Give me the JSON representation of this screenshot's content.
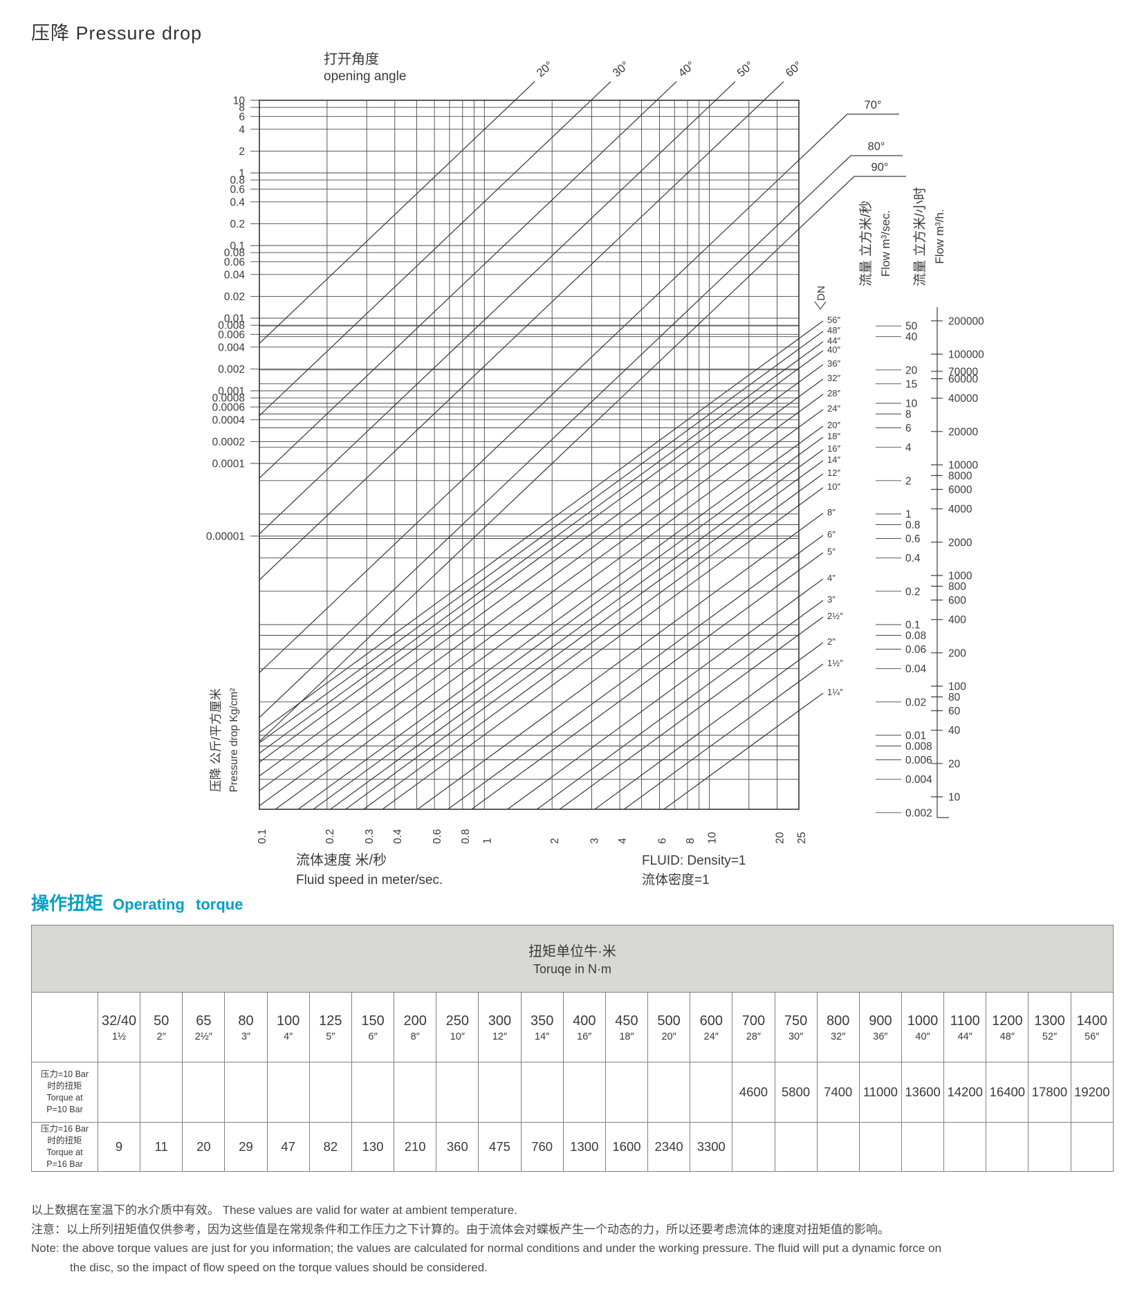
{
  "title_cn": "压降",
  "title_en": "Pressure drop",
  "chart_data": {
    "type": "line",
    "subtype": "nomogram",
    "title": "压降 Pressure drop",
    "opening_angle_label_cn": "打开角度",
    "opening_angle_label_en": "opening angle",
    "angle_lines": [
      "20°",
      "30°",
      "40°",
      "50°",
      "60°",
      "70°",
      "80°",
      "90°"
    ],
    "pressure_axis": {
      "label_cn": "压降 公斤/平方厘米",
      "label_en": "Pressure drop Kg/cm²",
      "scale": "log",
      "ticks": [
        "10",
        "8",
        "6",
        "4",
        "2",
        "1",
        "0.8",
        "0.6",
        "0.4",
        "0.2",
        "0.1",
        "0.08",
        "0.06",
        "0.04",
        "0.02",
        "0.01",
        "0.008",
        "0.006",
        "0.004",
        "0.002",
        "0.001",
        "0.0008",
        "0.0006",
        "0.0004",
        "0.0002",
        "0.0001",
        "0.00001"
      ]
    },
    "speed_axis": {
      "label_cn": "流体速度  米/秒",
      "label_en": "Fluid speed in meter/sec.",
      "scale": "log",
      "ticks": [
        "0.1",
        "0.2",
        "0.3",
        "0.4",
        "0.6",
        "0.8",
        "1",
        "2",
        "3",
        "4",
        "6",
        "8",
        "10",
        "20",
        "25"
      ]
    },
    "dn_scale": {
      "label": "DN",
      "sizes": [
        "56″",
        "48″",
        "44″",
        "40″",
        "36″",
        "32″",
        "28″",
        "24″",
        "20″",
        "18″",
        "16″",
        "14″",
        "12″",
        "10″",
        "8″",
        "6″",
        "5″",
        "4″",
        "3″",
        "2½″",
        "2″",
        "1½″",
        "1¼″"
      ]
    },
    "flow_sec_axis": {
      "label_cn": "流量 立方米/秒",
      "label_en": "Flow m³/sec.",
      "scale": "log",
      "ticks": [
        "50",
        "40",
        "20",
        "15",
        "10",
        "8",
        "6",
        "4",
        "2",
        "1",
        "0.8",
        "0.6",
        "0.4",
        "0.2",
        "0.1",
        "0.08",
        "0.06",
        "0.04",
        "0.02",
        "0.01",
        "0.008",
        "0.006",
        "0.004",
        "0.002"
      ]
    },
    "flow_hour_axis": {
      "label_cn": "流量 立方米/小时",
      "label_en": "Flow m³/h.",
      "scale": "log",
      "ticks": [
        "200000",
        "100000",
        "70000",
        "60000",
        "40000",
        "20000",
        "10000",
        "8000",
        "6000",
        "4000",
        "2000",
        "1000",
        "800",
        "600",
        "400",
        "200",
        "100",
        "80",
        "60",
        "40",
        "20",
        "10"
      ]
    },
    "fluid_note_line1": "FLUID: Density=1",
    "fluid_note_line2": "流体密度=1"
  },
  "torque_section": {
    "title_cn": "操作扭矩",
    "title_en": "Operating torque",
    "accent_color": "#00a0c6",
    "table": {
      "unit_header_cn": "扭矩单位牛·米",
      "unit_header_en": "Toruqe in N·m",
      "columns": [
        {
          "size": "32/40",
          "inch": "1½"
        },
        {
          "size": "50",
          "inch": "2″"
        },
        {
          "size": "65",
          "inch": "2½″"
        },
        {
          "size": "80",
          "inch": "3″"
        },
        {
          "size": "100",
          "inch": "4″"
        },
        {
          "size": "125",
          "inch": "5″"
        },
        {
          "size": "150",
          "inch": "6″"
        },
        {
          "size": "200",
          "inch": "8″"
        },
        {
          "size": "250",
          "inch": "10″"
        },
        {
          "size": "300",
          "inch": "12″"
        },
        {
          "size": "350",
          "inch": "14″"
        },
        {
          "size": "400",
          "inch": "16″"
        },
        {
          "size": "450",
          "inch": "18″"
        },
        {
          "size": "500",
          "inch": "20″"
        },
        {
          "size": "600",
          "inch": "24″"
        },
        {
          "size": "700",
          "inch": "28″"
        },
        {
          "size": "750",
          "inch": "30″"
        },
        {
          "size": "800",
          "inch": "32″"
        },
        {
          "size": "900",
          "inch": "36″"
        },
        {
          "size": "1000",
          "inch": "40″"
        },
        {
          "size": "1100",
          "inch": "44″"
        },
        {
          "size": "1200",
          "inch": "48″"
        },
        {
          "size": "1300",
          "inch": "52″"
        },
        {
          "size": "1400",
          "inch": "56″"
        }
      ],
      "rows": [
        {
          "label_lines": [
            "压力=10 Bar",
            "时的扭矩",
            "Torque at",
            "P=10 Bar"
          ],
          "values": [
            "",
            "",
            "",
            "",
            "",
            "",
            "",
            "",
            "",
            "",
            "",
            "",
            "",
            "",
            "",
            "4600",
            "5800",
            "7400",
            "11000",
            "13600",
            "14200",
            "16400",
            "17800",
            "19200"
          ]
        },
        {
          "label_lines": [
            "压力=16 Bar",
            "时的扭矩",
            "Torque at",
            "P=16 Bar"
          ],
          "values": [
            "9",
            "11",
            "20",
            "29",
            "47",
            "82",
            "130",
            "210",
            "360",
            "475",
            "760",
            "1300",
            "1600",
            "2340",
            "3300",
            "",
            "",
            "",
            "",
            "",
            "",
            "",
            "",
            ""
          ]
        }
      ]
    },
    "notes": [
      "以上数据在室温下的水介质中有效。 These values are valid for water at ambient temperature.",
      "注意：以上所列扭矩值仅供参考，因为这些值是在常规条件和工作压力之下计算的。由于流体会对蝶板产生一个动态的力，所以还要考虑流体的速度对扭矩值的影响。",
      "Note: the above torque values are just for you information; the values are calculated for normal conditions and under the working pressure. The fluid will put a dynamic force on",
      "the disc, so the impact of flow speed on the torque values should be considered."
    ]
  }
}
